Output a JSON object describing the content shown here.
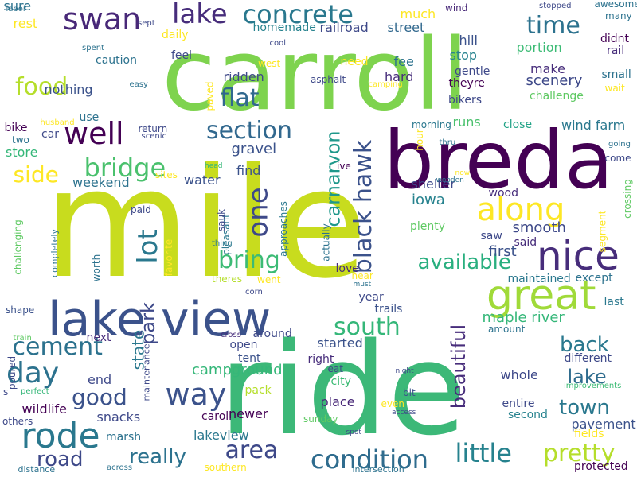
{
  "words": [
    {
      "text": "mile",
      "color": "#c8dc1e",
      "rotated": false
    },
    {
      "text": "ride",
      "color": "#3cb878",
      "rotated": false
    },
    {
      "text": "carroll",
      "color": "#7ed34e",
      "rotated": false
    },
    {
      "text": "breda",
      "color": "#440154",
      "rotated": false
    },
    {
      "text": "lake view",
      "color": "#3b528b",
      "rotated": false
    },
    {
      "text": "great",
      "color": "#a0da39",
      "rotated": false
    },
    {
      "text": "rode",
      "color": "#2a788e",
      "rotated": false
    },
    {
      "text": "nice",
      "color": "#472d7b",
      "rotated": false
    },
    {
      "text": "along",
      "color": "#fde725",
      "rotated": false
    },
    {
      "text": "way",
      "color": "#3b528b",
      "rotated": false
    },
    {
      "text": "swan",
      "color": "#482878",
      "rotated": false
    },
    {
      "text": "concrete",
      "color": "#2a788e",
      "rotated": false
    },
    {
      "text": "condition",
      "color": "#2f6c8e",
      "rotated": false
    },
    {
      "text": "little",
      "color": "#26828e",
      "rotated": false
    },
    {
      "text": "pretty",
      "color": "#b5de2b",
      "rotated": false
    },
    {
      "text": "area",
      "color": "#3e4989",
      "rotated": false
    },
    {
      "text": "day",
      "color": "#2c728e",
      "rotated": false
    },
    {
      "text": "well",
      "color": "#440154",
      "rotated": false
    },
    {
      "text": "section",
      "color": "#31688e",
      "rotated": false
    },
    {
      "text": "bridge",
      "color": "#4ac16d",
      "rotated": false
    },
    {
      "text": "south",
      "color": "#35b779",
      "rotated": false
    },
    {
      "text": "food",
      "color": "#b5de2b",
      "rotated": false
    },
    {
      "text": "lake",
      "color": "#472d7b",
      "rotated": false
    },
    {
      "text": "flat",
      "color": "#31688e",
      "rotated": false
    },
    {
      "text": "time",
      "color": "#2c728e",
      "rotated": false
    },
    {
      "text": "one",
      "color": "#3e4989",
      "rotated": true
    },
    {
      "text": "black hawk",
      "color": "#3b528b",
      "rotated": true
    },
    {
      "text": "carnarvon",
      "color": "#1f988b",
      "rotated": true
    },
    {
      "text": "lot",
      "color": "#2a788e",
      "rotated": true
    },
    {
      "text": "bring",
      "color": "#3cbb75",
      "rotated": false
    },
    {
      "text": "available",
      "color": "#29af7f",
      "rotated": false
    },
    {
      "text": "cement",
      "color": "#2c728e",
      "rotated": false
    },
    {
      "text": "good",
      "color": "#3b528b",
      "rotated": false
    },
    {
      "text": "back",
      "color": "#2a788e",
      "rotated": false
    },
    {
      "text": "town",
      "color": "#2a788e",
      "rotated": false
    },
    {
      "text": "lake",
      "color": "#2f6c8e",
      "rotated": false
    },
    {
      "text": "beautiful",
      "color": "#472d7b",
      "rotated": true
    },
    {
      "text": "road",
      "color": "#3e4989",
      "rotated": false
    },
    {
      "text": "really",
      "color": "#2c728e",
      "rotated": false
    },
    {
      "text": "side",
      "color": "#fde725",
      "rotated": false
    },
    {
      "text": "park",
      "color": "#3e4989",
      "rotated": true
    },
    {
      "text": "state",
      "color": "#2a788e",
      "rotated": true
    },
    {
      "text": "campground",
      "color": "#35b779",
      "rotated": false
    },
    {
      "text": "lakeview",
      "color": "#2a788e",
      "rotated": false
    },
    {
      "text": "condition",
      "color": "#2f6c8e",
      "rotated": false
    },
    {
      "text": "scenery",
      "color": "#3e4989",
      "rotated": false
    },
    {
      "text": "gravel",
      "color": "#3b528b",
      "rotated": false
    },
    {
      "text": "iowa",
      "color": "#26828e",
      "rotated": false
    },
    {
      "text": "first",
      "color": "#3b528b",
      "rotated": false
    },
    {
      "text": "smooth",
      "color": "#3e4989",
      "rotated": false
    },
    {
      "text": "maple river",
      "color": "#35b779",
      "rotated": false
    },
    {
      "text": "started",
      "color": "#3b528b",
      "rotated": false
    },
    {
      "text": "place",
      "color": "#482878",
      "rotated": false
    },
    {
      "text": "pavement",
      "color": "#3b528b",
      "rotated": false
    },
    {
      "text": "fields",
      "color": "#fde725",
      "rotated": false
    },
    {
      "text": "wind farm",
      "color": "#2a788e",
      "rotated": false
    },
    {
      "text": "hill",
      "color": "#3b528b",
      "rotated": false
    },
    {
      "text": "stop",
      "color": "#26828e",
      "rotated": false
    },
    {
      "text": "portion",
      "color": "#3cbb75",
      "rotated": false
    },
    {
      "text": "make",
      "color": "#472d7b",
      "rotated": false
    },
    {
      "text": "nothing",
      "color": "#3b528b",
      "rotated": false
    },
    {
      "text": "ridden",
      "color": "#3e4989",
      "rotated": false
    },
    {
      "text": "hard",
      "color": "#472d7b",
      "rotated": false
    },
    {
      "text": "fee",
      "color": "#2c728e",
      "rotated": false
    },
    {
      "text": "much",
      "color": "#fde725",
      "rotated": false
    },
    {
      "text": "railroad",
      "color": "#3e4989",
      "rotated": false
    },
    {
      "text": "street",
      "color": "#31688e",
      "rotated": false
    },
    {
      "text": "homemade",
      "color": "#26828e",
      "rotated": false
    },
    {
      "text": "runs",
      "color": "#4ac16d",
      "rotated": false
    },
    {
      "text": "close",
      "color": "#20a386",
      "rotated": false
    },
    {
      "text": "water",
      "color": "#3b528b",
      "rotated": false
    },
    {
      "text": "find",
      "color": "#3b528b",
      "rotated": false
    },
    {
      "text": "weekend",
      "color": "#2c728e",
      "rotated": false
    },
    {
      "text": "shelter",
      "color": "#3e4989",
      "rotated": false
    },
    {
      "text": "wood",
      "color": "#472d7b",
      "rotated": false
    },
    {
      "text": "plenty",
      "color": "#5ec962",
      "rotated": false
    },
    {
      "text": "saw",
      "color": "#3e4989",
      "rotated": false
    },
    {
      "text": "said",
      "color": "#472d7b",
      "rotated": false
    },
    {
      "text": "maintained",
      "color": "#2a788e",
      "rotated": false
    },
    {
      "text": "except",
      "color": "#2c728e",
      "rotated": false
    },
    {
      "text": "last",
      "color": "#2a788e",
      "rotated": false
    },
    {
      "text": "love",
      "color": "#472d7b",
      "rotated": false
    },
    {
      "text": "year",
      "color": "#3e4989",
      "rotated": false
    },
    {
      "text": "trails",
      "color": "#3b528b",
      "rotated": false
    },
    {
      "text": "around",
      "color": "#3e4989",
      "rotated": false
    },
    {
      "text": "open",
      "color": "#3e4989",
      "rotated": false
    },
    {
      "text": "tent",
      "color": "#3b528b",
      "rotated": false
    },
    {
      "text": "right",
      "color": "#472d7b",
      "rotated": false
    },
    {
      "text": "city",
      "color": "#3cbb75",
      "rotated": false
    },
    {
      "text": "pack",
      "color": "#b5de2b",
      "rotated": false
    },
    {
      "text": "newer",
      "color": "#440154",
      "rotated": false
    },
    {
      "text": "end",
      "color": "#3e4989",
      "rotated": false
    },
    {
      "text": "next",
      "color": "#472d7b",
      "rotated": false
    },
    {
      "text": "snacks",
      "color": "#3e4989",
      "rotated": false
    },
    {
      "text": "marsh",
      "color": "#2c728e",
      "rotated": false
    },
    {
      "text": "wildlife",
      "color": "#440154",
      "rotated": false
    },
    {
      "text": "others",
      "color": "#3e4989",
      "rotated": false
    },
    {
      "text": "caroll",
      "color": "#440154",
      "rotated": false
    },
    {
      "text": "sunday",
      "color": "#5ec962",
      "rotated": false
    },
    {
      "text": "bit",
      "color": "#3b528b",
      "rotated": false
    },
    {
      "text": "even",
      "color": "#fde725",
      "rotated": false
    },
    {
      "text": "whole",
      "color": "#3e4989",
      "rotated": false
    },
    {
      "text": "different",
      "color": "#3e4989",
      "rotated": false
    },
    {
      "text": "entire",
      "color": "#3e4989",
      "rotated": false
    },
    {
      "text": "second",
      "color": "#26828e",
      "rotated": false
    },
    {
      "text": "protected",
      "color": "#440154",
      "rotated": false
    },
    {
      "text": "southern",
      "color": "#fde725",
      "rotated": false
    },
    {
      "text": "distance",
      "color": "#2c728e",
      "rotated": false
    },
    {
      "text": "across",
      "color": "#2c728e",
      "rotated": false
    },
    {
      "text": "intersection",
      "color": "#2c728e",
      "rotated": false
    },
    {
      "text": "spot",
      "color": "#3e4989",
      "rotated": false
    },
    {
      "text": "access",
      "color": "#3e4989",
      "rotated": false
    },
    {
      "text": "improvements",
      "color": "#3cbb75",
      "rotated": false
    },
    {
      "text": "night",
      "color": "#3e4989",
      "rotated": false
    },
    {
      "text": "amount",
      "color": "#2c728e",
      "rotated": false
    },
    {
      "text": "eat",
      "color": "#3e4989",
      "rotated": false
    },
    {
      "text": "near",
      "color": "#fde725",
      "rotated": false
    },
    {
      "text": "must",
      "color": "#2c728e",
      "rotated": false
    },
    {
      "text": "went",
      "color": "#fde725",
      "rotated": false
    },
    {
      "text": "theres",
      "color": "#b5de2b",
      "rotated": false
    },
    {
      "text": "corn",
      "color": "#3e4989",
      "rotated": false
    },
    {
      "text": "cross",
      "color": "#472d7b",
      "rotated": false
    },
    {
      "text": "perfect",
      "color": "#35b779",
      "rotated": false
    },
    {
      "text": "shape",
      "color": "#3b528b",
      "rotated": false
    },
    {
      "text": "train",
      "color": "#5ec962",
      "rotated": false
    },
    {
      "text": "s",
      "color": "#3e4989",
      "rotated": false
    },
    {
      "text": "poured",
      "color": "#3e4989",
      "rotated": true
    },
    {
      "text": "maintenance",
      "color": "#3e4989",
      "rotated": true
    },
    {
      "text": "worth",
      "color": "#2c728e",
      "rotated": true
    },
    {
      "text": "challenging",
      "color": "#5ec962",
      "rotated": true
    },
    {
      "text": "completely",
      "color": "#2c728e",
      "rotated": true
    },
    {
      "text": "favorite",
      "color": "#fde725",
      "rotated": true
    },
    {
      "text": "paid",
      "color": "#3e4989",
      "rotated": false
    },
    {
      "text": "pleasant",
      "color": "#2a788e",
      "rotated": true
    },
    {
      "text": "approaches",
      "color": "#2a788e",
      "rotated": true
    },
    {
      "text": "actually",
      "color": "#2c728e",
      "rotated": true
    },
    {
      "text": "sauk",
      "color": "#3e4989",
      "rotated": true
    },
    {
      "text": "thing",
      "color": "#2a788e",
      "rotated": false
    },
    {
      "text": "sites",
      "color": "#fde725",
      "rotated": false
    },
    {
      "text": "return",
      "color": "#3e4989",
      "rotated": false
    },
    {
      "text": "scenic",
      "color": "#3e4989",
      "rotated": false
    },
    {
      "text": "head",
      "color": "#35b779",
      "rotated": false
    },
    {
      "text": "ive",
      "color": "#440154",
      "rotated": false
    },
    {
      "text": "hour",
      "color": "#fde725",
      "rotated": true
    },
    {
      "text": "thru",
      "color": "#2c728e",
      "rotated": false
    },
    {
      "text": "now",
      "color": "#fde725",
      "rotated": false
    },
    {
      "text": "wooden",
      "color": "#2c728e",
      "rotated": false
    },
    {
      "text": "morning",
      "color": "#2a788e",
      "rotated": false
    },
    {
      "text": "segment",
      "color": "#fde725",
      "rotated": true
    },
    {
      "text": "crossing",
      "color": "#5ec962",
      "rotated": true
    },
    {
      "text": "going",
      "color": "#2c728e",
      "rotated": false
    },
    {
      "text": "come",
      "color": "#3e4989",
      "rotated": false
    },
    {
      "text": "wait",
      "color": "#fde725",
      "rotated": false
    },
    {
      "text": "small",
      "color": "#2c728e",
      "rotated": false
    },
    {
      "text": "rail",
      "color": "#472d7b",
      "rotated": false
    },
    {
      "text": "didnt",
      "color": "#440154",
      "rotated": false
    },
    {
      "text": "many",
      "color": "#2c728e",
      "rotated": false
    },
    {
      "text": "awesome",
      "color": "#2c728e",
      "rotated": false
    },
    {
      "text": "stopped",
      "color": "#3e4989",
      "rotated": false
    },
    {
      "text": "wind",
      "color": "#482878",
      "rotated": false
    },
    {
      "text": "gentle",
      "color": "#3e4989",
      "rotated": false
    },
    {
      "text": "theyre",
      "color": "#440154",
      "rotated": false
    },
    {
      "text": "bikers",
      "color": "#3e4989",
      "rotated": false
    },
    {
      "text": "challenge",
      "color": "#5ec962",
      "rotated": false
    },
    {
      "text": "asphalt",
      "color": "#3e4989",
      "rotated": false
    },
    {
      "text": "camping",
      "color": "#fde725",
      "rotated": false
    },
    {
      "text": "need",
      "color": "#fde725",
      "rotated": false
    },
    {
      "text": "west",
      "color": "#fde725",
      "rotated": false
    },
    {
      "text": "cool",
      "color": "#3e4989",
      "rotated": false
    },
    {
      "text": "easy",
      "color": "#2c728e",
      "rotated": false
    },
    {
      "text": "paved",
      "color": "#fde725",
      "rotated": true
    },
    {
      "text": "feel",
      "color": "#3e4989",
      "rotated": false
    },
    {
      "text": "daily",
      "color": "#fde725",
      "rotated": false
    },
    {
      "text": "sept",
      "color": "#3e4989",
      "rotated": false
    },
    {
      "text": "spent",
      "color": "#2c728e",
      "rotated": false
    },
    {
      "text": "caution",
      "color": "#2c728e",
      "rotated": false
    },
    {
      "text": "rest",
      "color": "#fde725",
      "rotated": false
    },
    {
      "text": "sure",
      "color": "#2c728e",
      "rotated": false
    },
    {
      "text": "labor",
      "color": "#2c728e",
      "rotated": false
    },
    {
      "text": "use",
      "color": "#2c728e",
      "rotated": false
    },
    {
      "text": "husband",
      "color": "#fde725",
      "rotated": false
    },
    {
      "text": "bike",
      "color": "#440154",
      "rotated": false
    },
    {
      "text": "car",
      "color": "#3e4989",
      "rotated": false
    },
    {
      "text": "two",
      "color": "#2c728e",
      "rotated": false
    },
    {
      "text": "store",
      "color": "#35b779",
      "rotated": false
    }
  ]
}
